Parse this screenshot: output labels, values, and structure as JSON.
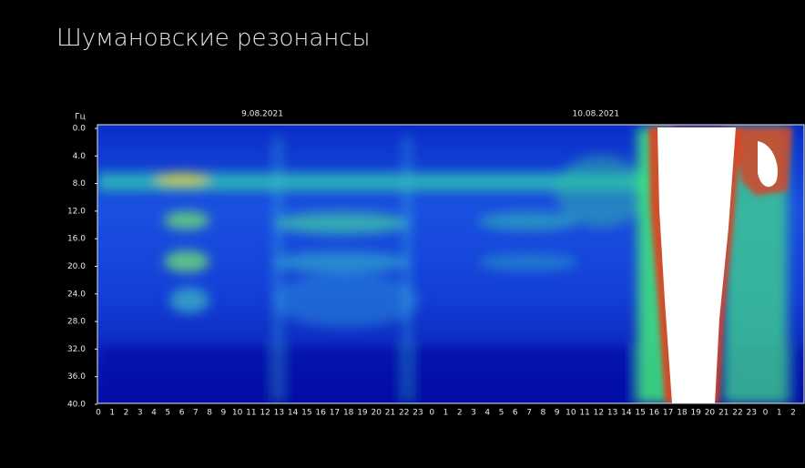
{
  "chart_data": {
    "type": "spectrogram",
    "title": "Шумановские резонансы",
    "y_label": "Гц",
    "date_labels": [
      "9.08.2021",
      "10.08.2021"
    ],
    "categories": [
      "0",
      "1",
      "2",
      "3",
      "4",
      "5",
      "6",
      "7",
      "8",
      "9",
      "10",
      "11",
      "12",
      "13",
      "14",
      "15",
      "16",
      "17",
      "18",
      "19",
      "20",
      "21",
      "22",
      "23",
      "0",
      "1",
      "2",
      "3",
      "4",
      "5",
      "6",
      "7",
      "8",
      "9",
      "10",
      "11",
      "12",
      "13",
      "14",
      "15",
      "16",
      "17",
      "18",
      "19",
      "20",
      "21",
      "22",
      "23",
      "0",
      "1",
      "2"
    ],
    "ylim": [
      0,
      40
    ],
    "yticks": [
      {
        "value": 0,
        "label": "0.0"
      },
      {
        "value": 4,
        "label": "4.0"
      },
      {
        "value": 8,
        "label": "8.0"
      },
      {
        "value": 12,
        "label": "12.0"
      },
      {
        "value": 16,
        "label": "16.0"
      },
      {
        "value": 20,
        "label": "20.0"
      },
      {
        "value": 24,
        "label": "24.0"
      },
      {
        "value": 28,
        "label": "28.0"
      },
      {
        "value": 32,
        "label": "32.0"
      },
      {
        "value": 36,
        "label": "36.0"
      },
      {
        "value": 40,
        "label": "40.0"
      }
    ]
  }
}
